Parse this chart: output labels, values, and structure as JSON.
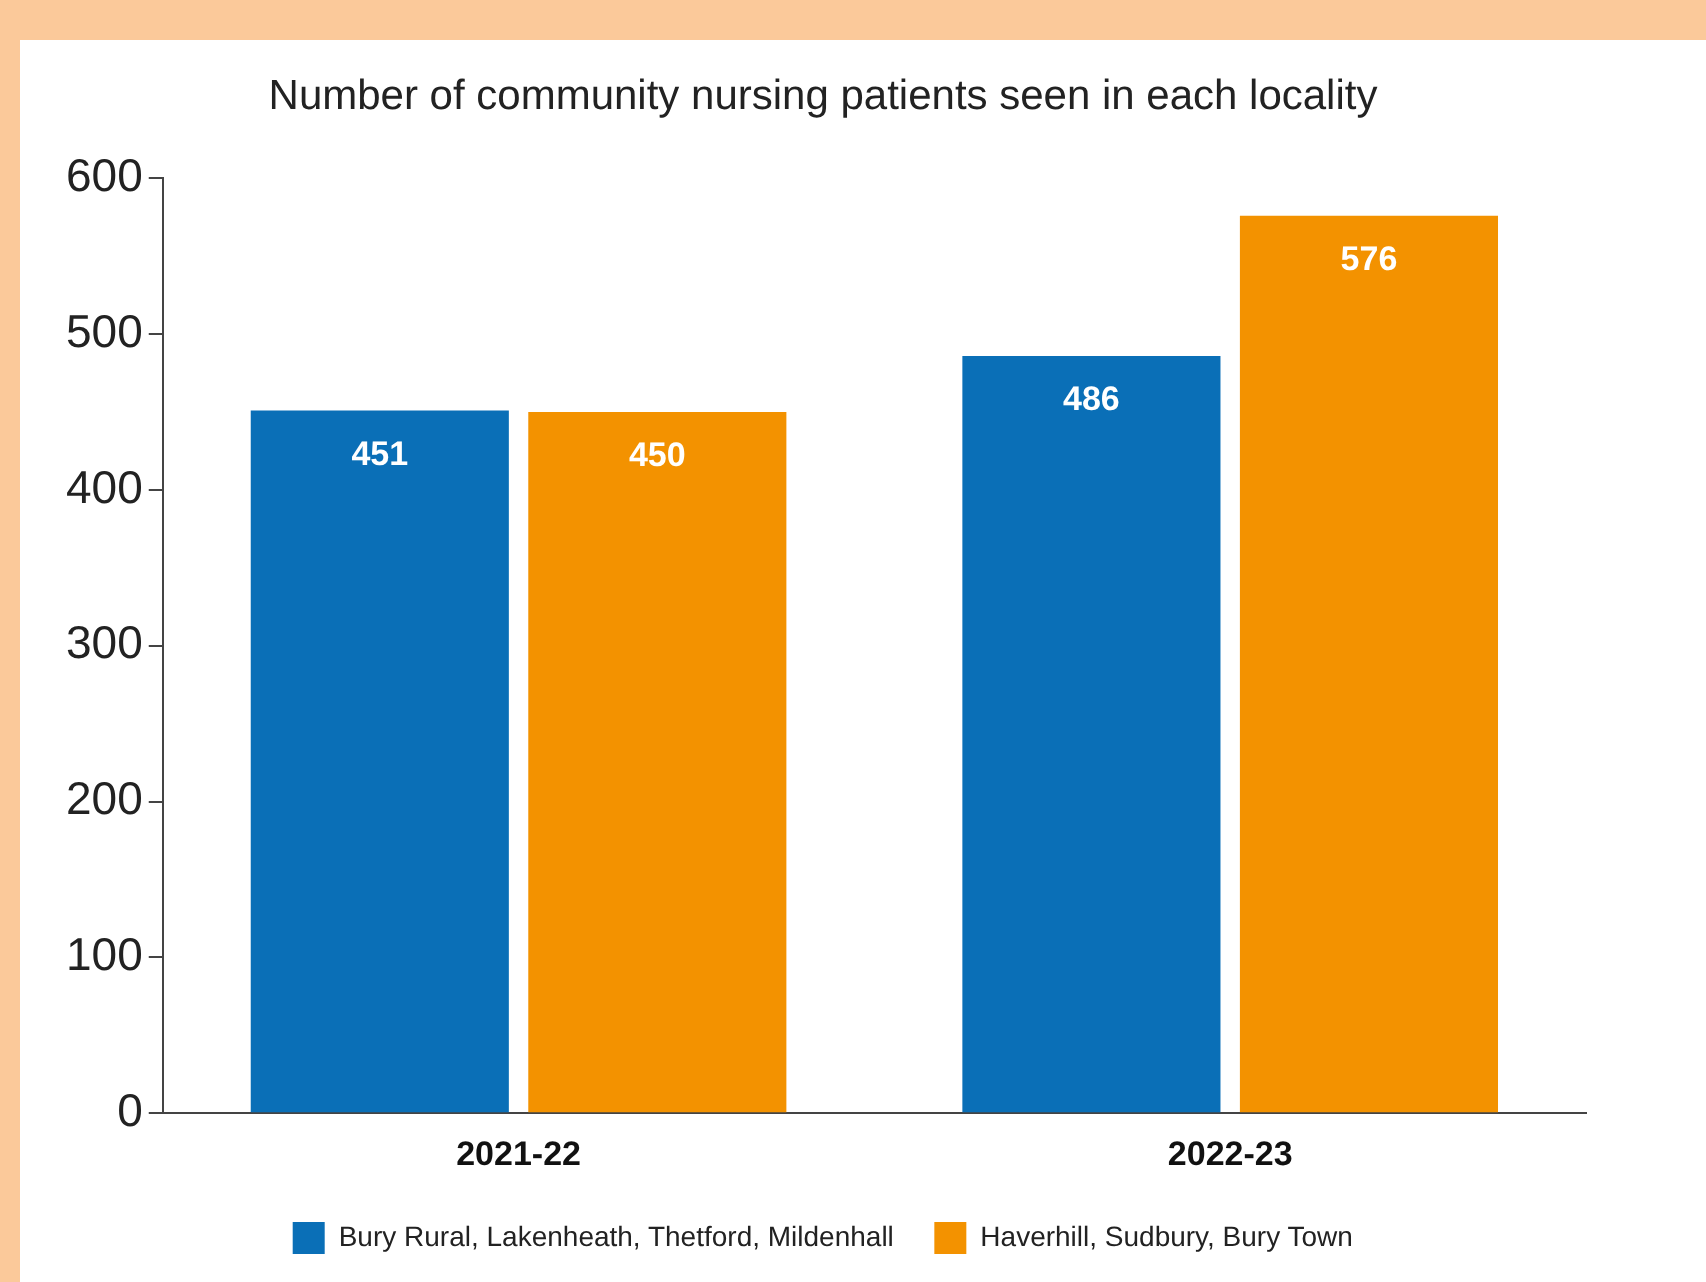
{
  "chart_data": {
    "type": "bar",
    "title": "Number of community nursing patients seen in each locality",
    "categories": [
      "2021-22",
      "2022-23"
    ],
    "series": [
      {
        "name": "Bury Rural, Lakenheath, Thetford, Mildenhall",
        "color": "#0a6fb7",
        "values": [
          451,
          486
        ]
      },
      {
        "name": "Haverhill, Sudbury, Bury Town",
        "color": "#f39200",
        "values": [
          450,
          576
        ]
      }
    ],
    "ylim": [
      0,
      600
    ],
    "yticks": [
      0,
      100,
      200,
      300,
      400,
      500,
      600
    ],
    "grid": false,
    "legend": "bottom",
    "data_labels": true
  }
}
